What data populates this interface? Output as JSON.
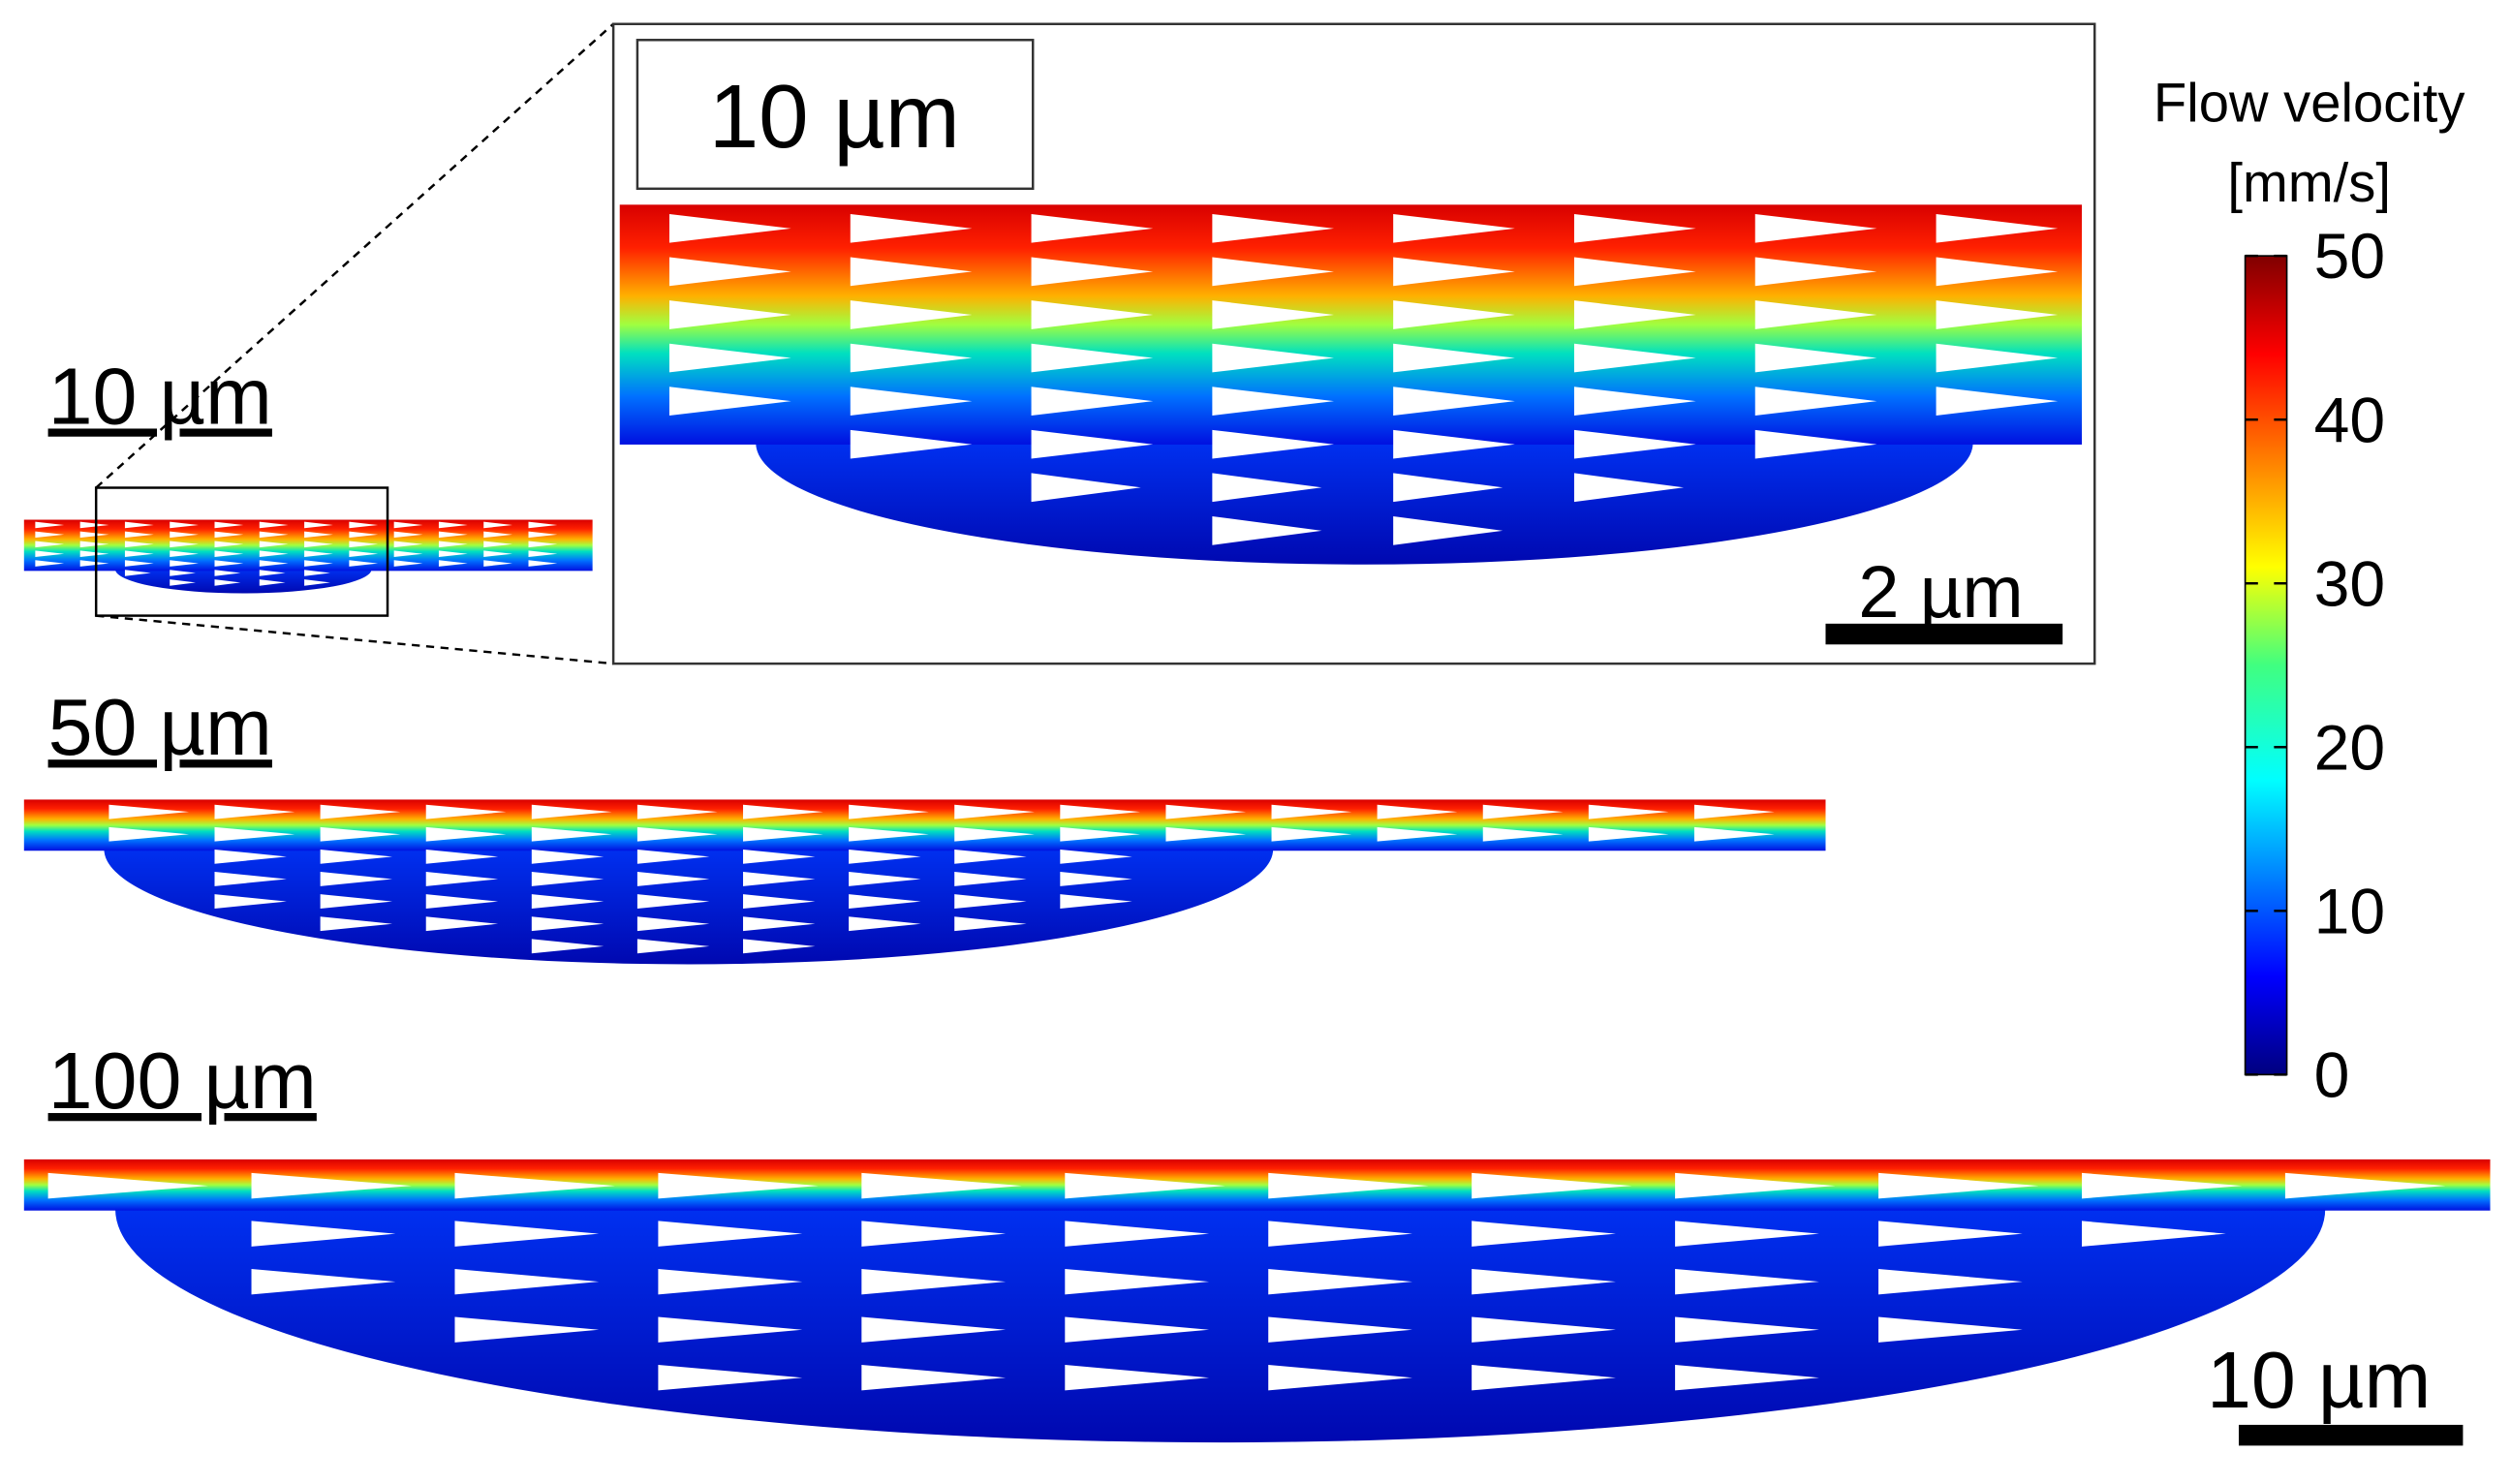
{
  "panels": [
    {
      "label": "10 µm"
    },
    {
      "label": "50 µm"
    },
    {
      "label": "100 µm"
    }
  ],
  "inset": {
    "label": "10 µm",
    "scale_bar": "2 µm"
  },
  "scale_bar": "10 µm",
  "colorbar": {
    "title": "Flow velocity",
    "unit": "[mm/s]",
    "lim": [
      0,
      50
    ],
    "ticks": [
      0,
      10,
      20,
      30,
      40,
      50
    ]
  }
}
